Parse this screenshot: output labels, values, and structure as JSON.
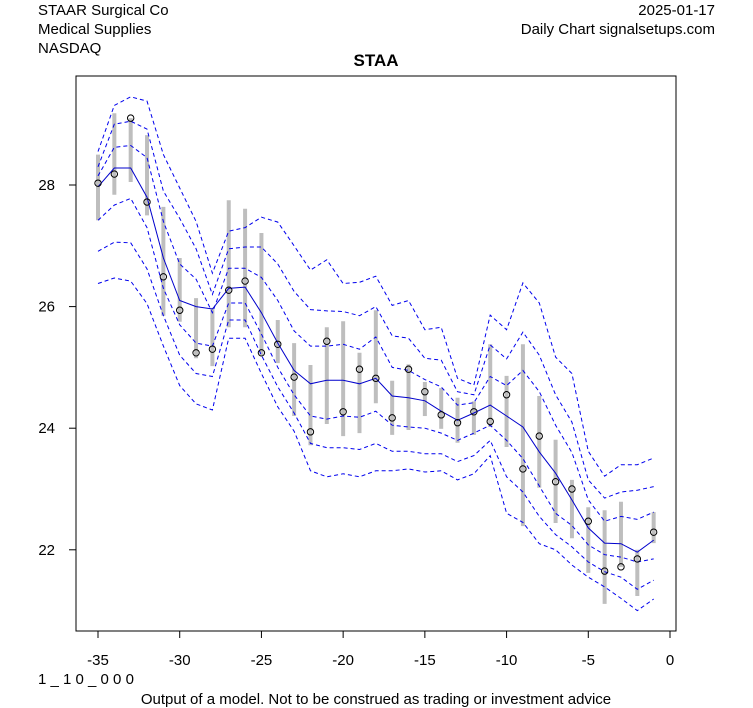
{
  "header": {
    "company": "STAAR Surgical Co",
    "sector": "Medical Supplies",
    "exchange": "NASDAQ",
    "date": "2025-01-17",
    "source": "Daily Chart signalsetups.com"
  },
  "footer": {
    "code": "1 _ 1 0 _ 0 0 0",
    "disclaimer": "Output of a model. Not to be construed as trading or investment advice"
  },
  "colors": {
    "band": "#0000ee",
    "center": "#0000cc",
    "bar": "#bebebe",
    "point": "#000000"
  },
  "chart_data": {
    "type": "line",
    "title": "STAA",
    "xlabel": "",
    "ylabel": "",
    "xlim": [
      -36.3,
      0.4
    ],
    "ylim": [
      20.6,
      29.6
    ],
    "xticks": [
      -35,
      -30,
      -25,
      -20,
      -15,
      -10,
      -5,
      0
    ],
    "xtick_labels": [
      "-35",
      "-30",
      "-25",
      "-20",
      "-15",
      "-10",
      "-5",
      "0"
    ],
    "yticks": [
      22,
      24,
      26,
      28
    ],
    "ytick_labels": [
      "22",
      "24",
      "26",
      "28"
    ],
    "grid": false,
    "legend": "none",
    "x": [
      -35,
      -34,
      -33,
      -32,
      -31,
      -30,
      -29,
      -28,
      -27,
      -26,
      -25,
      -24,
      -23,
      -22,
      -21,
      -20,
      -19,
      -18,
      -17,
      -16,
      -15,
      -14,
      -13,
      -12,
      -11,
      -10,
      -9,
      -8,
      -7,
      -6,
      -5,
      -4,
      -3,
      -2,
      -1
    ],
    "close": [
      28.03,
      28.18,
      29.1,
      27.72,
      26.49,
      25.94,
      25.24,
      25.3,
      26.27,
      26.42,
      25.24,
      25.38,
      24.84,
      23.94,
      25.43,
      24.27,
      24.97,
      24.82,
      24.17,
      24.97,
      24.6,
      24.22,
      24.09,
      24.27,
      24.11,
      24.55,
      23.33,
      23.87,
      23.12,
      23.0,
      22.47,
      21.65,
      21.72,
      21.85,
      22.29
    ],
    "high": [
      28.5,
      29.18,
      29.1,
      28.82,
      27.64,
      26.8,
      26.14,
      25.98,
      27.75,
      27.61,
      27.21,
      25.78,
      25.4,
      25.04,
      25.66,
      25.76,
      25.24,
      25.94,
      24.78,
      25.05,
      24.76,
      24.66,
      24.5,
      24.44,
      25.38,
      24.86,
      25.38,
      24.53,
      23.81,
      23.15,
      22.7,
      22.65,
      22.79,
      22.0,
      22.62
    ],
    "low": [
      27.42,
      27.84,
      28.05,
      27.5,
      25.85,
      25.75,
      25.15,
      25.02,
      25.66,
      25.66,
      25.2,
      25.07,
      24.2,
      23.72,
      24.07,
      23.87,
      23.92,
      24.41,
      23.89,
      23.97,
      24.2,
      23.99,
      23.76,
      23.89,
      24.02,
      23.69,
      22.39,
      23.02,
      22.44,
      22.19,
      21.62,
      21.11,
      21.72,
      21.24,
      22.11
    ],
    "series": [
      {
        "name": "upper-3",
        "style": "dashed",
        "values": [
          28.55,
          29.31,
          29.45,
          29.38,
          28.5,
          27.95,
          27.4,
          26.55,
          27.24,
          27.3,
          27.47,
          27.39,
          27.0,
          26.6,
          26.77,
          26.38,
          26.4,
          26.5,
          26.02,
          26.1,
          25.62,
          25.66,
          24.82,
          24.71,
          25.86,
          25.62,
          26.39,
          26.06,
          25.17,
          24.9,
          23.62,
          23.21,
          23.4,
          23.4,
          23.51
        ]
      },
      {
        "name": "upper-2",
        "style": "dashed",
        "values": [
          28.3,
          29.0,
          29.05,
          28.92,
          27.9,
          27.45,
          26.95,
          26.2,
          26.95,
          26.98,
          26.98,
          26.7,
          26.25,
          25.95,
          25.93,
          25.92,
          25.85,
          26.0,
          25.52,
          25.48,
          25.15,
          25.12,
          24.6,
          24.55,
          25.37,
          25.14,
          25.58,
          25.2,
          24.55,
          24.1,
          23.15,
          22.85,
          22.95,
          22.98,
          23.04
        ]
      },
      {
        "name": "upper-1",
        "style": "dashed",
        "values": [
          28.15,
          28.62,
          28.65,
          28.45,
          27.4,
          26.7,
          26.45,
          25.9,
          26.63,
          26.63,
          26.48,
          26.1,
          25.6,
          25.35,
          25.35,
          25.38,
          25.3,
          25.5,
          25.0,
          24.95,
          24.8,
          24.68,
          24.38,
          24.42,
          24.85,
          24.7,
          24.95,
          24.6,
          24.05,
          23.6,
          22.82,
          22.47,
          22.55,
          22.5,
          22.62
        ]
      },
      {
        "name": "center",
        "style": "solid",
        "values": [
          27.97,
          28.28,
          28.28,
          27.8,
          26.8,
          26.1,
          26.0,
          25.96,
          26.3,
          26.32,
          25.9,
          25.4,
          24.95,
          24.73,
          24.79,
          24.79,
          24.73,
          24.82,
          24.53,
          24.5,
          24.45,
          24.28,
          24.13,
          24.25,
          24.38,
          24.2,
          24.02,
          23.61,
          23.26,
          22.82,
          22.36,
          22.11,
          22.1,
          21.96,
          22.16
        ]
      },
      {
        "name": "lower-1",
        "style": "dashed",
        "values": [
          27.42,
          27.67,
          27.78,
          27.3,
          26.3,
          25.7,
          25.4,
          25.35,
          26.06,
          26.06,
          25.55,
          25.0,
          24.55,
          24.2,
          24.15,
          24.2,
          24.18,
          24.28,
          24.05,
          24.02,
          24.0,
          23.92,
          23.8,
          23.92,
          24.05,
          23.8,
          23.5,
          23.05,
          22.6,
          22.4,
          22.08,
          21.92,
          21.88,
          21.8,
          21.85
        ]
      },
      {
        "name": "lower-2",
        "style": "dashed",
        "values": [
          26.91,
          27.06,
          27.05,
          26.62,
          25.85,
          25.2,
          24.9,
          24.85,
          25.78,
          25.78,
          25.2,
          24.68,
          24.25,
          23.75,
          23.68,
          23.68,
          23.65,
          23.75,
          23.62,
          23.62,
          23.58,
          23.58,
          23.45,
          23.55,
          23.8,
          23.2,
          22.95,
          22.55,
          22.25,
          22.05,
          21.8,
          21.64,
          21.55,
          21.35,
          21.5
        ]
      },
      {
        "name": "lower-3",
        "style": "dashed",
        "values": [
          26.38,
          26.47,
          26.42,
          26.05,
          25.35,
          24.7,
          24.4,
          24.3,
          25.48,
          25.48,
          24.9,
          24.35,
          23.95,
          23.3,
          23.2,
          23.25,
          23.2,
          23.3,
          23.3,
          23.33,
          23.28,
          23.3,
          23.15,
          23.25,
          23.55,
          22.6,
          22.45,
          22.1,
          22.0,
          21.75,
          21.55,
          21.39,
          21.2,
          21.0,
          21.19
        ]
      }
    ]
  }
}
